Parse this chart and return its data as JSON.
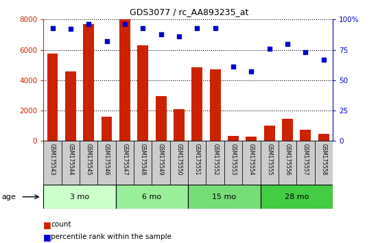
{
  "title": "GDS3077 / rc_AA893235_at",
  "samples": [
    "GSM175543",
    "GSM175544",
    "GSM175545",
    "GSM175546",
    "GSM175547",
    "GSM175548",
    "GSM175549",
    "GSM175550",
    "GSM175551",
    "GSM175552",
    "GSM175553",
    "GSM175554",
    "GSM175555",
    "GSM175556",
    "GSM175557",
    "GSM175558"
  ],
  "counts": [
    5750,
    4600,
    7700,
    1600,
    8000,
    6300,
    2950,
    2100,
    4850,
    4700,
    350,
    280,
    1020,
    1480,
    750,
    480
  ],
  "percentiles": [
    93,
    92,
    96,
    82,
    96,
    93,
    88,
    86,
    93,
    93,
    61,
    57,
    76,
    80,
    73,
    67
  ],
  "bar_color": "#cc2200",
  "dot_color": "#0000cc",
  "left_ylim": [
    0,
    8000
  ],
  "right_ylim": [
    0,
    100
  ],
  "left_yticks": [
    0,
    2000,
    4000,
    6000,
    8000
  ],
  "right_yticks": [
    0,
    25,
    50,
    75,
    100
  ],
  "right_yticklabels": [
    "0",
    "25",
    "50",
    "75",
    "100%"
  ],
  "groups": [
    {
      "label": "3 mo",
      "indices": [
        0,
        1,
        2,
        3
      ],
      "color": "#ccffcc"
    },
    {
      "label": "6 mo",
      "indices": [
        4,
        5,
        6,
        7
      ],
      "color": "#99ee99"
    },
    {
      "label": "15 mo",
      "indices": [
        8,
        9,
        10,
        11
      ],
      "color": "#77dd77"
    },
    {
      "label": "28 mo",
      "indices": [
        12,
        13,
        14,
        15
      ],
      "color": "#44cc44"
    }
  ],
  "age_label": "age",
  "legend_count": "count",
  "legend_pct": "percentile rank within the sample",
  "background_plot": "#ffffff",
  "tick_label_bg": "#cccccc",
  "group_area_bg": "#bbbbbb"
}
